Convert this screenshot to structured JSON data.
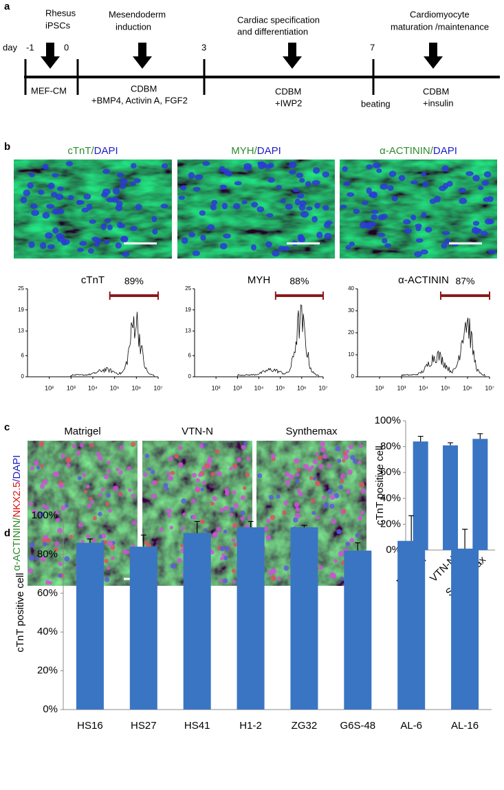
{
  "panel_a": {
    "label": "a",
    "day_label": "day",
    "days": [
      "-1",
      "0",
      "3",
      "7"
    ],
    "stages": [
      [
        "Rhesus",
        "iPSCs"
      ],
      [
        "Mesendoderm",
        "induction"
      ],
      [
        "Cardiac specification",
        "and differentiation"
      ],
      [
        "Cardiomyocyte",
        "maturation /maintenance"
      ]
    ],
    "media": [
      [
        "MEF-CM"
      ],
      [
        "CDBM",
        "+BMP4, Activin A, FGF2"
      ],
      [
        "CDBM",
        "+IWP2"
      ],
      [
        "beating"
      ],
      [
        "CDBM",
        "+insulin"
      ]
    ]
  },
  "panel_b": {
    "label": "b",
    "stains": [
      [
        {
          "text": "cTnT/",
          "color": "#2e8b2e"
        },
        {
          "text": "DAPI",
          "color": "#1c1cc8"
        }
      ],
      [
        {
          "text": "MYH/",
          "color": "#2e8b2e"
        },
        {
          "text": "DAPI",
          "color": "#1c1cc8"
        }
      ],
      [
        {
          "text": "α-ACTININ/",
          "color": "#2e8b2e"
        },
        {
          "text": "DAPI",
          "color": "#1c1cc8"
        }
      ]
    ],
    "flow": [
      {
        "title": "cTnT",
        "gate_label": "89%",
        "ylim": [
          0,
          25
        ],
        "yticks": [
          0,
          6,
          13,
          19,
          25
        ]
      },
      {
        "title": "MYH",
        "gate_label": "88%",
        "ylim": [
          0,
          25
        ],
        "yticks": [
          0,
          6,
          13,
          19,
          25
        ]
      },
      {
        "title": "α-ACTININ",
        "gate_label": "87%",
        "ylim": [
          0,
          40
        ],
        "yticks": [
          0,
          10,
          20,
          30,
          40
        ]
      }
    ],
    "flow_xlim": [
      10,
      10000000
    ],
    "flow_log_x": true,
    "gate_color": "#8b1a1a",
    "flow_xticks": [
      {
        "value": 100,
        "label": "10²"
      },
      {
        "value": 1000,
        "label": "10³"
      },
      {
        "value": 10000,
        "label": "10⁴"
      },
      {
        "value": 100000,
        "label": "10⁵"
      },
      {
        "value": 1000000,
        "label": "10⁶"
      },
      {
        "value": 10000000,
        "label": "10⁷"
      }
    ]
  },
  "panel_c": {
    "label": "c",
    "substrates": [
      "Matrigel",
      "VTN-N",
      "Synthemax"
    ],
    "stain": [
      {
        "text": "α-ACTININ/",
        "color": "#2e8b2e"
      },
      {
        "text": "NKX2.5",
        "color": "#e01010"
      },
      {
        "text": "/DAPI",
        "color": "#1c1cc8"
      }
    ]
  },
  "panel_d": {
    "label": "d"
  },
  "chart_data": [
    {
      "type": "bar",
      "categories": [
        "Matrigel",
        "VTN-N",
        "Synthemax"
      ],
      "values": [
        84,
        81,
        86
      ],
      "errors": [
        4,
        2,
        4
      ],
      "ylabel": "cTnT positive cell",
      "color": "#3a75c4",
      "ylim": [
        0,
        100
      ],
      "yticks": [
        {
          "value": 0,
          "label": "0%"
        },
        {
          "value": 20,
          "label": "20%"
        },
        {
          "value": 40,
          "label": "40%"
        },
        {
          "value": 60,
          "label": "60%"
        },
        {
          "value": 80,
          "label": "80%"
        },
        {
          "value": 100,
          "label": "100%"
        }
      ]
    },
    {
      "type": "bar",
      "categories": [
        "HS16",
        "HS27",
        "HS41",
        "H1-2",
        "ZG32",
        "G6S-48",
        "AL-6",
        "AL-16"
      ],
      "values": [
        86,
        84,
        91,
        94,
        94,
        82,
        87,
        83
      ],
      "errors": [
        2,
        6,
        6,
        3,
        1,
        4,
        13,
        10
      ],
      "ylabel": "cTnT positive cell",
      "color": "#3a75c4",
      "ylim": [
        0,
        100
      ],
      "yticks": [
        {
          "value": 0,
          "label": "0%"
        },
        {
          "value": 20,
          "label": "20%"
        },
        {
          "value": 40,
          "label": "40%"
        },
        {
          "value": 60,
          "label": "60%"
        },
        {
          "value": 80,
          "label": "80%"
        },
        {
          "value": 100,
          "label": "100%"
        }
      ]
    }
  ]
}
